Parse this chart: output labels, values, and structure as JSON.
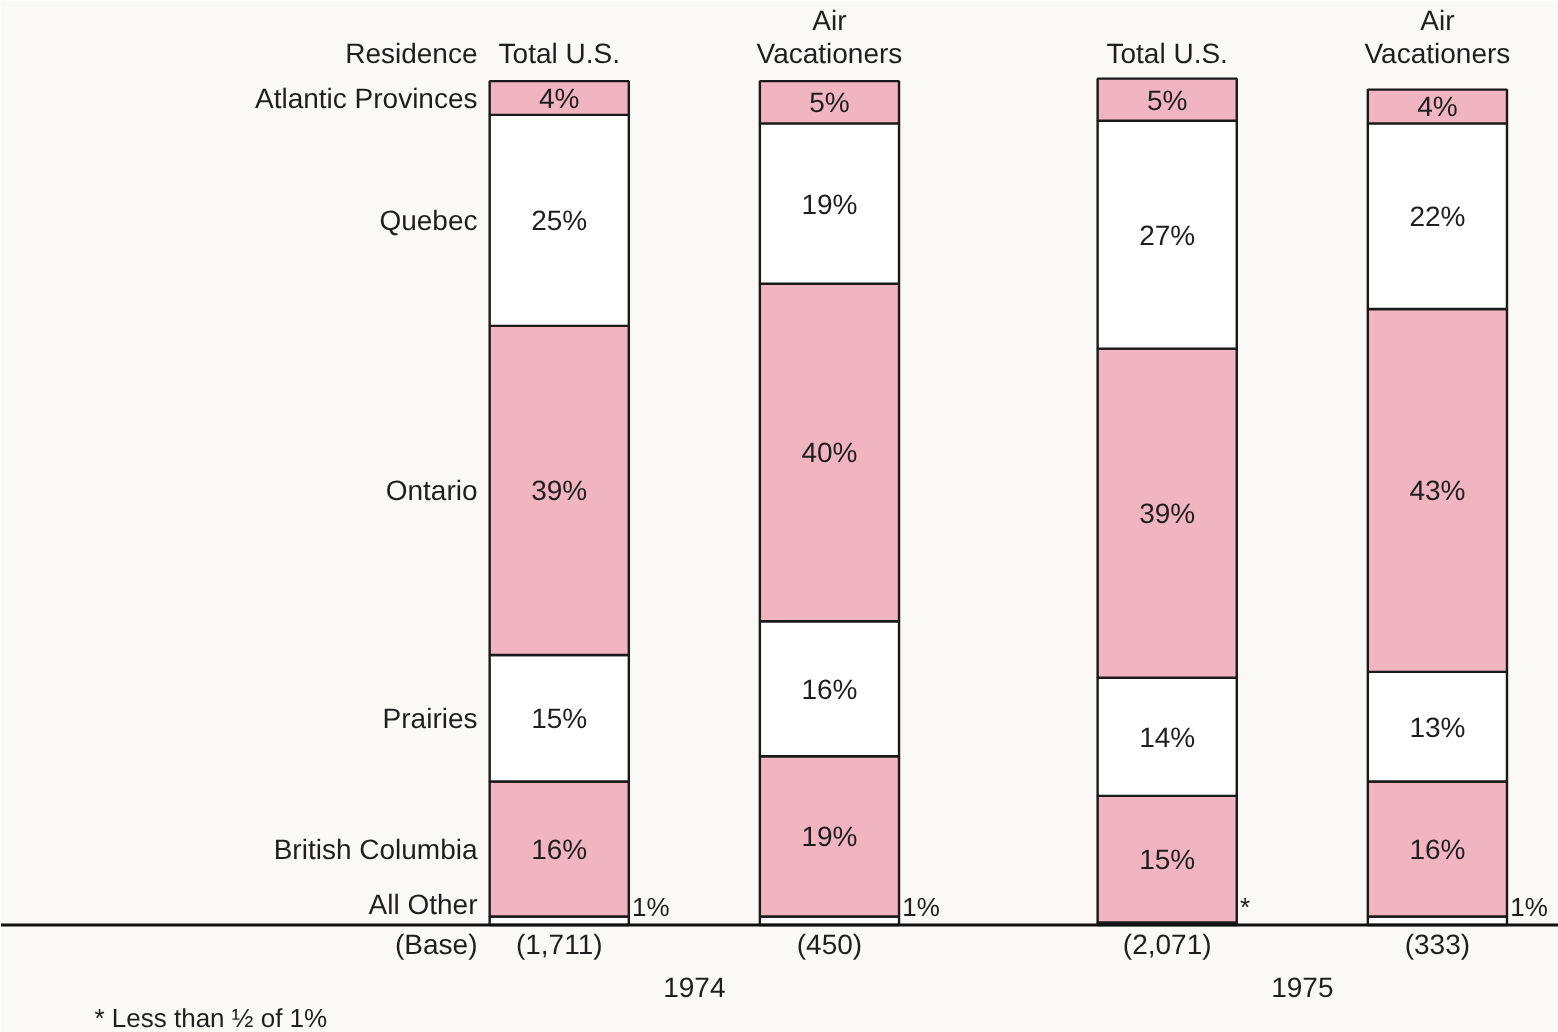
{
  "chart_data": {
    "type": "bar",
    "stacked": true,
    "legend": "left",
    "legend_title": "Residence",
    "categories": [
      "Total U.S.",
      "Air Vacationers",
      "Total U.S.",
      "Air Vacationers"
    ],
    "series": [
      {
        "name": "All Other",
        "color": "#ffffff",
        "values": [
          1,
          1,
          0.3,
          1
        ],
        "value_labels": [
          "1%",
          "1%",
          "*",
          "1%"
        ]
      },
      {
        "name": "British Columbia",
        "color": "#f1b5c1",
        "values": [
          16,
          19,
          15,
          16
        ],
        "value_labels": [
          "16%",
          "19%",
          "15%",
          "16%"
        ]
      },
      {
        "name": "Prairies",
        "color": "#ffffff",
        "values": [
          15,
          16,
          14,
          13
        ],
        "value_labels": [
          "15%",
          "16%",
          "14%",
          "13%"
        ]
      },
      {
        "name": "Ontario",
        "color": "#f1b5c1",
        "values": [
          39,
          40,
          39,
          43
        ],
        "value_labels": [
          "39%",
          "40%",
          "39%",
          "43%"
        ]
      },
      {
        "name": "Quebec",
        "color": "#ffffff",
        "values": [
          25,
          19,
          27,
          22
        ],
        "value_labels": [
          "25%",
          "19%",
          "27%",
          "22%"
        ]
      },
      {
        "name": "Atlantic Provinces",
        "color": "#f1b5c1",
        "values": [
          4,
          5,
          5,
          4
        ],
        "value_labels": [
          "4%",
          "5%",
          "5%",
          "4%"
        ]
      }
    ],
    "annotations": [
      "(Base)",
      "(1,711)",
      "(450)",
      "(2,071)",
      "(333)",
      "1974",
      "1975",
      "* Less than ½ of 1%"
    ]
  }
}
